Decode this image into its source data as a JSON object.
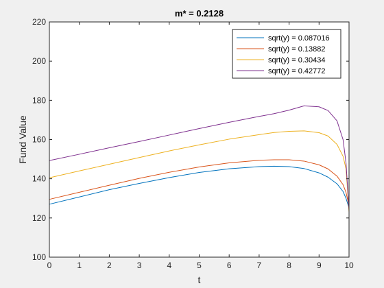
{
  "chart_data": {
    "type": "line",
    "title": "m* = 0.2128",
    "xlabel": "t",
    "ylabel": "Fund Value",
    "xlim": [
      0,
      10
    ],
    "ylim": [
      100,
      220
    ],
    "xticks": [
      "0",
      "1",
      "2",
      "3",
      "4",
      "5",
      "6",
      "7",
      "8",
      "9",
      "10"
    ],
    "yticks": [
      "100",
      "120",
      "140",
      "160",
      "180",
      "200",
      "220"
    ],
    "grid": false,
    "legend_position": "top-right",
    "series": [
      {
        "name": "sqrt(y) = 0.087016",
        "color": "#0072BD",
        "x": [
          0,
          1,
          2,
          3,
          4,
          5,
          6,
          7,
          7.5,
          8,
          8.5,
          9,
          9.3,
          9.6,
          9.8,
          9.9,
          10
        ],
        "y": [
          127,
          130.7,
          134.4,
          137.6,
          140.6,
          143.2,
          145.1,
          146.2,
          146.4,
          146.2,
          145.2,
          143,
          140.8,
          137.4,
          133.5,
          130,
          125
        ]
      },
      {
        "name": "sqrt(y) = 0.13882",
        "color": "#D95319",
        "x": [
          0,
          1,
          2,
          3,
          4,
          5,
          6,
          7,
          7.5,
          8,
          8.5,
          9,
          9.3,
          9.6,
          9.8,
          9.9,
          10
        ],
        "y": [
          129.5,
          133.1,
          136.7,
          140.2,
          143.3,
          146,
          148.1,
          149.4,
          149.7,
          149.7,
          149,
          147.1,
          145,
          141.3,
          137,
          133,
          126
        ]
      },
      {
        "name": "sqrt(y) = 0.30434",
        "color": "#EDB120",
        "x": [
          0,
          1,
          2,
          3,
          4,
          5,
          6,
          7,
          7.5,
          8,
          8.5,
          9,
          9.3,
          9.6,
          9.8,
          9.9,
          10
        ],
        "y": [
          140.5,
          144,
          147.4,
          150.8,
          154.2,
          157.3,
          160.2,
          162.5,
          163.6,
          164.2,
          164.4,
          163.5,
          161.8,
          157.5,
          151.5,
          145,
          123
        ]
      },
      {
        "name": "sqrt(y) = 0.42772",
        "color": "#7E2F8E",
        "x": [
          0,
          1,
          2,
          3,
          4,
          5,
          6,
          7,
          7.5,
          8,
          8.5,
          9,
          9.3,
          9.6,
          9.8,
          9.9,
          10
        ],
        "y": [
          149.3,
          152.5,
          155.8,
          159,
          162.3,
          165.6,
          168.8,
          171.8,
          173.2,
          175,
          177.2,
          176.7,
          174.8,
          169.5,
          160,
          148,
          124
        ]
      }
    ]
  }
}
